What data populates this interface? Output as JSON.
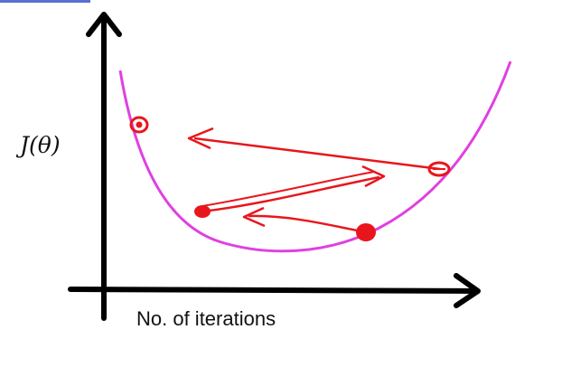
{
  "axes": {
    "y_label": "J(θ)",
    "x_label": "No. of iterations"
  },
  "colors": {
    "axis": "#000000",
    "curve": "#e040e0",
    "marker": "#e8161c",
    "arrow": "#e8161c",
    "background": "#ffffff"
  }
}
